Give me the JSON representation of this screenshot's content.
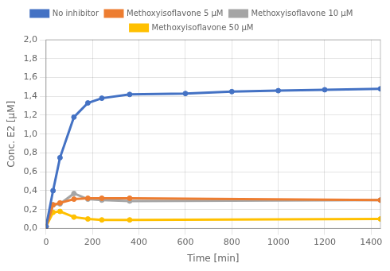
{
  "chart_data": {
    "type": "line",
    "xlabel": "Time [min]",
    "ylabel": "Conc. E2 [μM]",
    "series": [
      {
        "name": "No inhibitor",
        "color": "#4472C4",
        "x": [
          0,
          30,
          60,
          120,
          180,
          240,
          360,
          600,
          800,
          1000,
          1200,
          1440
        ],
        "values": [
          0.02,
          0.4,
          0.75,
          1.18,
          1.33,
          1.38,
          1.42,
          1.43,
          1.45,
          1.46,
          1.47,
          1.48
        ]
      },
      {
        "name": "Methoxyisoflavone 5 μM",
        "color": "#ED7D31",
        "x": [
          0,
          30,
          60,
          120,
          180,
          240,
          360,
          1440
        ],
        "values": [
          0.02,
          0.25,
          0.27,
          0.31,
          0.32,
          0.32,
          0.32,
          0.3
        ]
      },
      {
        "name": "Methoxyisoflavone 10 μM",
        "color": "#A5A5A5",
        "x": [
          0,
          30,
          60,
          120,
          180,
          240,
          360,
          1440
        ],
        "values": [
          0.02,
          0.25,
          0.26,
          0.37,
          0.31,
          0.3,
          0.29,
          0.3
        ]
      },
      {
        "name": "Methoxyisoflavone 50 μM",
        "color": "#FFC000",
        "x": [
          0,
          30,
          60,
          120,
          180,
          240,
          360,
          1440
        ],
        "values": [
          0.02,
          0.17,
          0.18,
          0.12,
          0.1,
          0.09,
          0.09,
          0.1
        ]
      }
    ],
    "xlim": [
      0,
      1440
    ],
    "xticks": [
      0,
      200,
      400,
      600,
      800,
      1000,
      1200,
      1400
    ],
    "ylim": [
      0.0,
      2.0
    ],
    "yticks": [
      {
        "value": 0.0,
        "label": "0,0"
      },
      {
        "value": 0.2,
        "label": "0,2"
      },
      {
        "value": 0.4,
        "label": "0,4"
      },
      {
        "value": 0.6,
        "label": "0,6"
      },
      {
        "value": 0.8,
        "label": "0,8"
      },
      {
        "value": 1.0,
        "label": "1,0"
      },
      {
        "value": 1.2,
        "label": "1,2"
      },
      {
        "value": 1.4,
        "label": "1,4"
      },
      {
        "value": 1.6,
        "label": "1,6"
      },
      {
        "value": 1.8,
        "label": "1,8"
      },
      {
        "value": 2.0,
        "label": "2,0"
      }
    ],
    "grid": true,
    "legend": "top",
    "marker": "circle"
  }
}
